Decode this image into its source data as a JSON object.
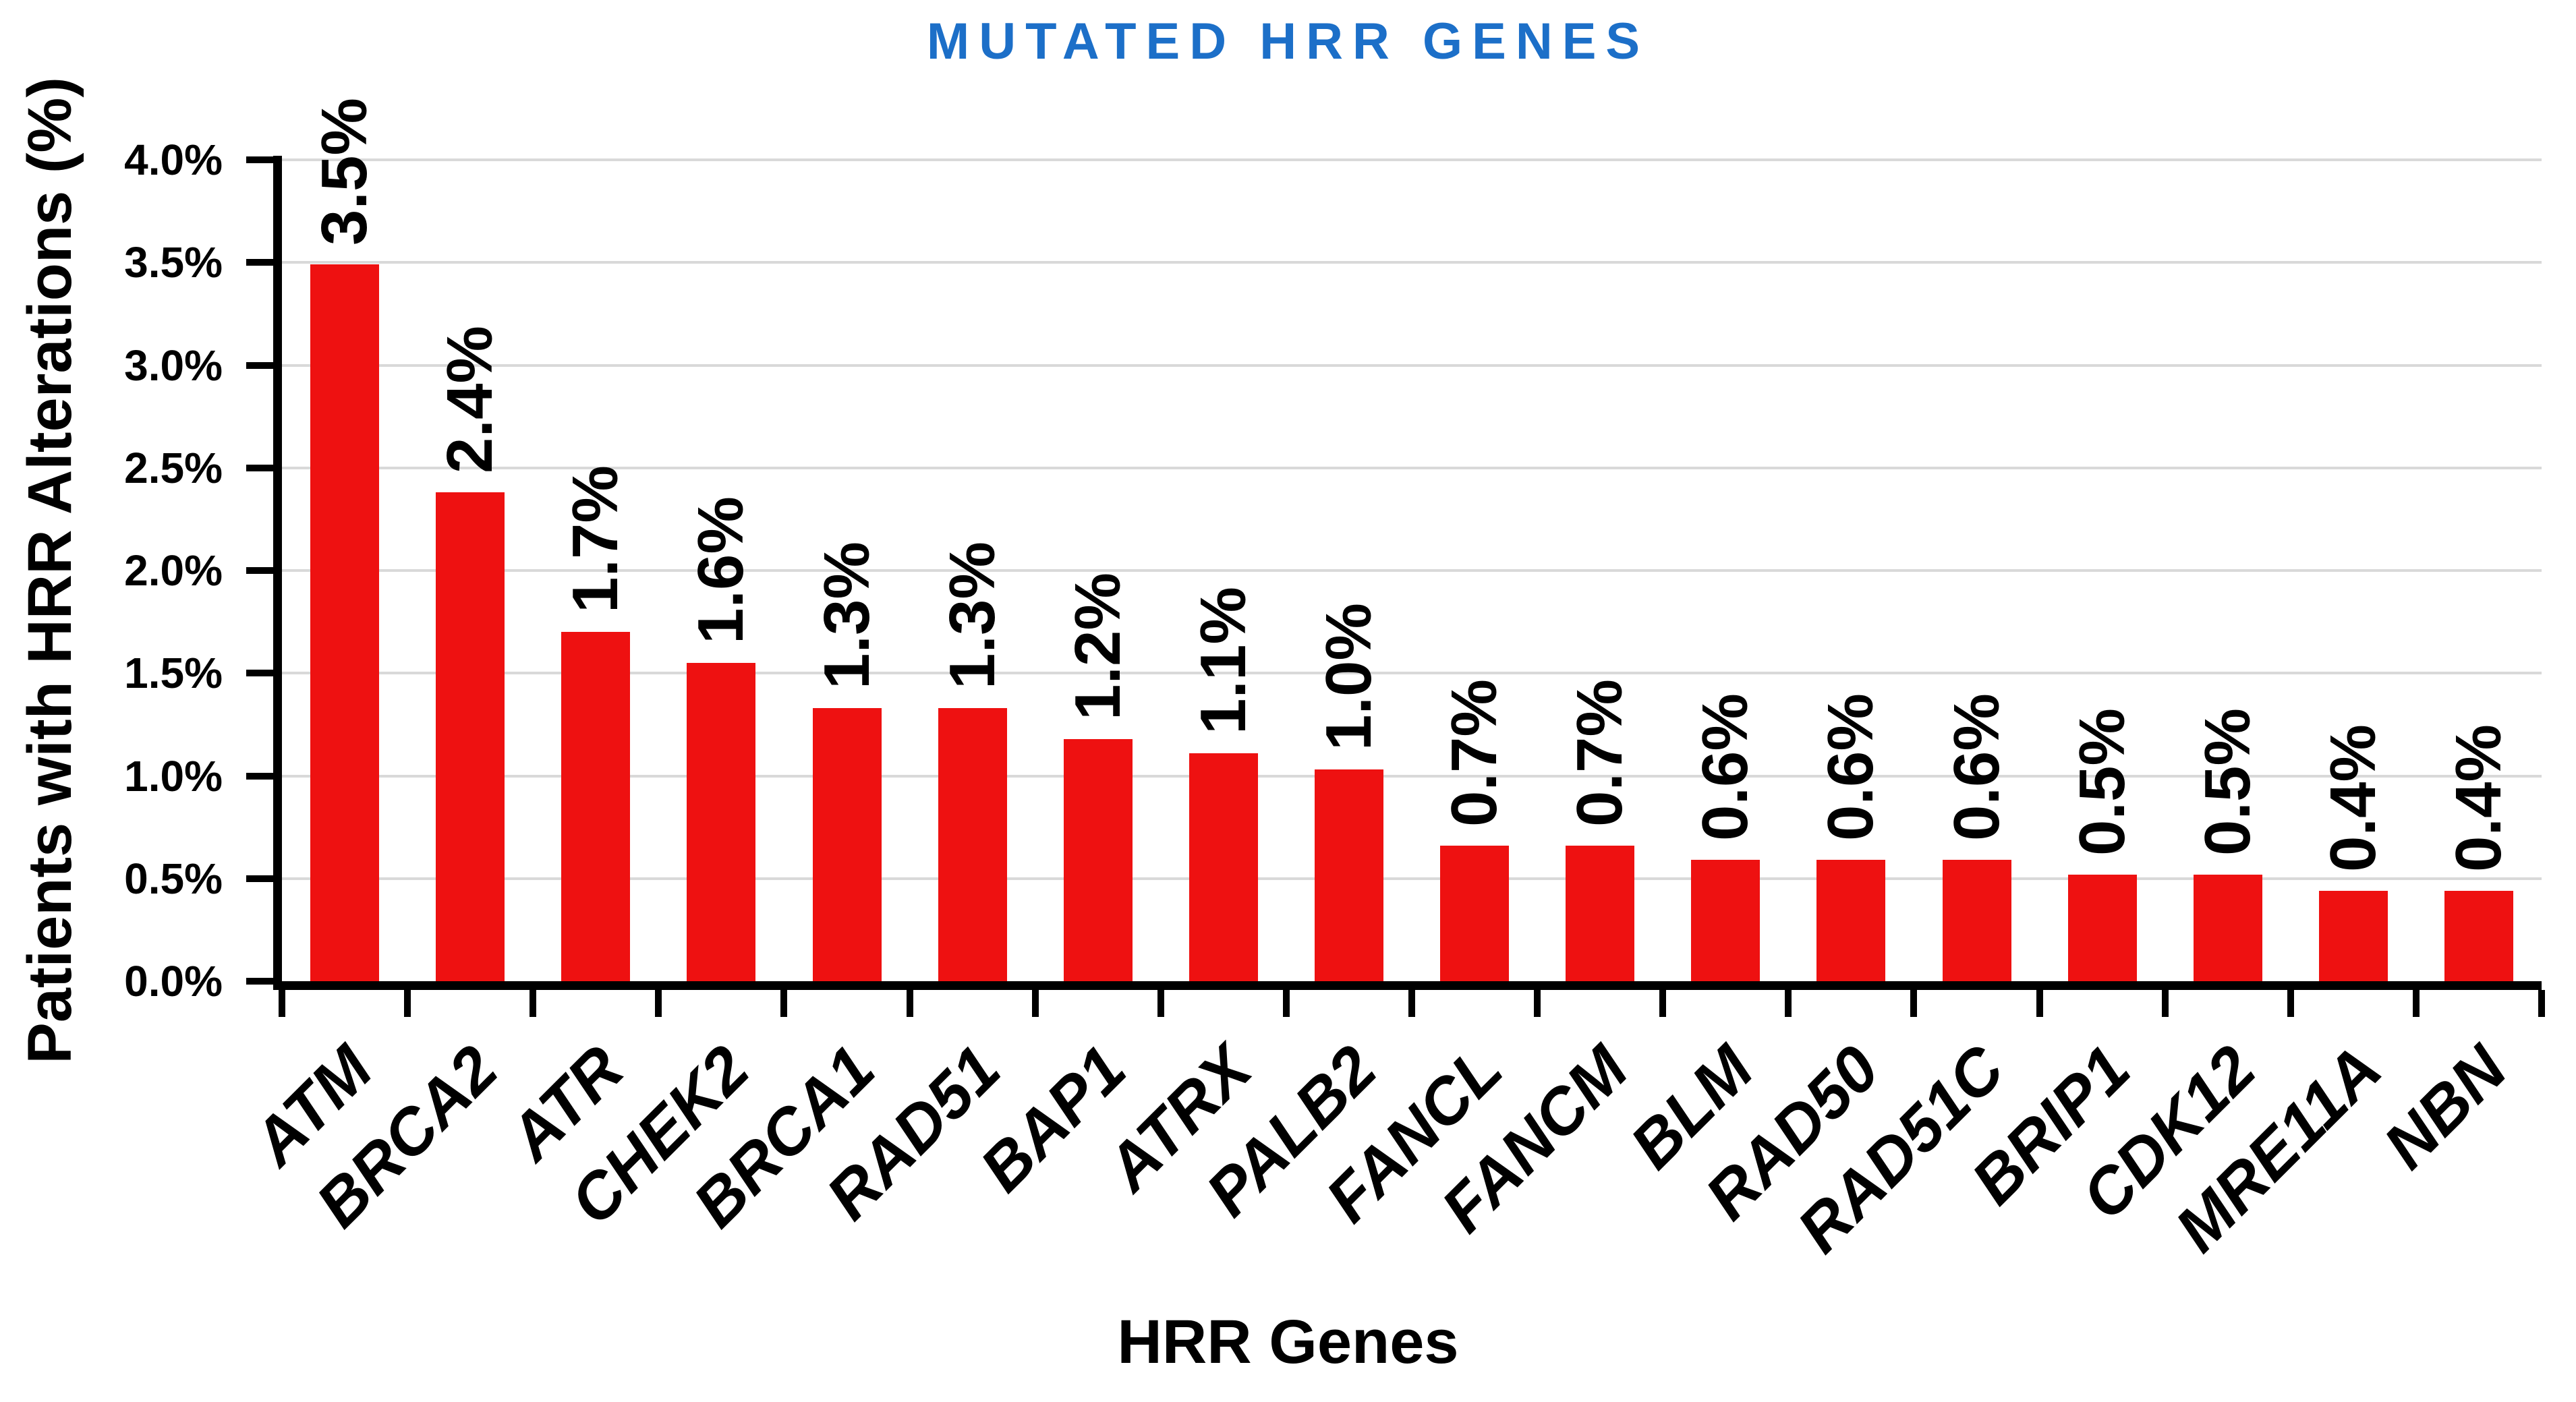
{
  "chart_data": {
    "type": "bar",
    "title": "MUTATED HRR GENES",
    "xlabel": "HRR Genes",
    "ylabel": "Patients with HRR Alterations (%)",
    "categories": [
      "ATM",
      "BRCA2",
      "ATR",
      "CHEK2",
      "BRCA1",
      "RAD51",
      "BAP1",
      "ATRX",
      "PALB2",
      "FANCL",
      "FANCM",
      "BLM",
      "RAD50",
      "RAD51C",
      "BRIP1",
      "CDK12",
      "MRE11A",
      "NBN"
    ],
    "values": [
      3.49,
      2.38,
      1.7,
      1.55,
      1.33,
      1.33,
      1.18,
      1.11,
      1.03,
      0.66,
      0.66,
      0.59,
      0.59,
      0.59,
      0.52,
      0.52,
      0.44,
      0.44
    ],
    "value_labels": [
      "3.5%",
      "2.4%",
      "1.7%",
      "1.6%",
      "1.3%",
      "1.3%",
      "1.2%",
      "1.1%",
      "1.0%",
      "0.7%",
      "0.7%",
      "0.6%",
      "0.6%",
      "0.6%",
      "0.5%",
      "0.5%",
      "0.4%",
      "0.4%"
    ],
    "ylim": [
      0,
      4
    ],
    "y_tick_step": 0.5,
    "y_tick_labels": [
      "0.0%",
      "0.5%",
      "1.0%",
      "1.5%",
      "2.0%",
      "2.5%",
      "3.0%",
      "3.5%",
      "4.0%"
    ],
    "grid": true,
    "legend": "none",
    "colors": {
      "bar": "#EE1111",
      "title": "#1C6FC8",
      "gridline": "#D9D9D9",
      "axis": "#000000",
      "text": "#000000"
    }
  }
}
